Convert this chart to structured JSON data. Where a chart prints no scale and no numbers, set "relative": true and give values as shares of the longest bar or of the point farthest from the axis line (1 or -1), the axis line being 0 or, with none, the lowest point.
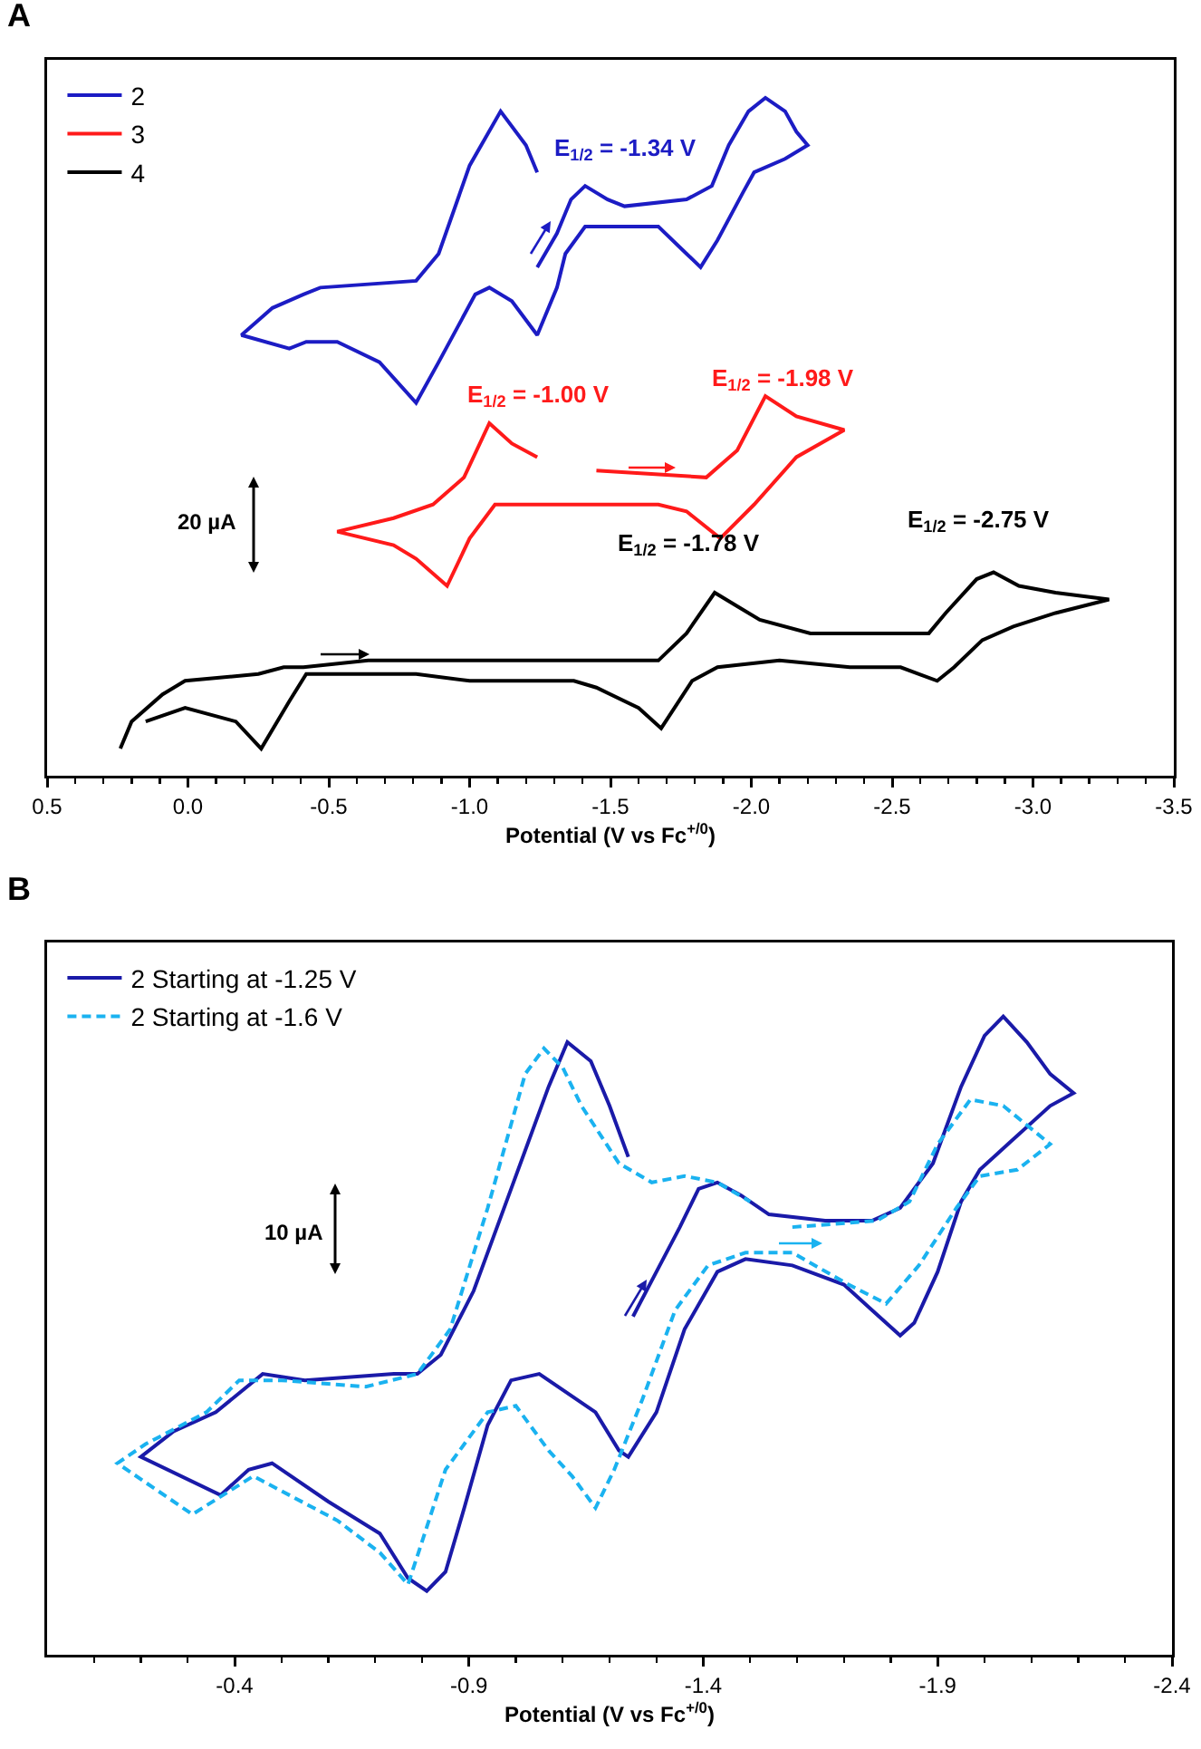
{
  "chart_data": [
    {
      "type": "line",
      "title": "A",
      "xlabel": "Potential (V vs Fc$^{+/0}$)",
      "relative": true,
      "xlim": [
        0.5,
        -3.5
      ],
      "xticks": [
        0.5,
        {
          "value": 0.4,
          "label": null
        },
        {
          "value": 0.3,
          "label": null
        },
        {
          "value": 0.2,
          "label": null
        },
        {
          "value": 0.1,
          "label": null
        },
        {
          "value": 0,
          "label": "0.0"
        },
        {
          "value": -0.1,
          "label": null
        },
        {
          "value": -0.2,
          "label": null
        },
        {
          "value": -0.3,
          "label": null
        },
        {
          "value": -0.4,
          "label": null
        },
        -0.5,
        {
          "value": -0.6,
          "label": null
        },
        {
          "value": -0.7,
          "label": null
        },
        {
          "value": -0.8,
          "label": null
        },
        {
          "value": -0.9,
          "label": null
        },
        {
          "value": -1,
          "label": "-1.0"
        },
        {
          "value": -1.1,
          "label": null
        },
        {
          "value": -1.2,
          "label": null
        },
        {
          "value": -1.3,
          "label": null
        },
        {
          "value": -1.4,
          "label": null
        },
        -1.5,
        {
          "value": -1.6,
          "label": null
        },
        {
          "value": -1.7,
          "label": null
        },
        {
          "value": -1.8,
          "label": null
        },
        {
          "value": -1.9,
          "label": null
        },
        {
          "value": -2,
          "label": "-2.0"
        },
        {
          "value": -2.1,
          "label": null
        },
        {
          "value": -2.2,
          "label": null
        },
        {
          "value": -2.3,
          "label": null
        },
        {
          "value": -2.4,
          "label": null
        },
        -2.5,
        {
          "value": -2.6,
          "label": null
        },
        {
          "value": -2.7,
          "label": null
        },
        {
          "value": -2.8,
          "label": null
        },
        {
          "value": -2.9,
          "label": null
        },
        {
          "value": -3,
          "label": "-3.0"
        },
        {
          "value": -3.1,
          "label": null
        },
        {
          "value": -3.2,
          "label": null
        },
        {
          "value": -3.3,
          "label": null
        },
        {
          "value": -3.4,
          "label": null
        },
        -3.5
      ],
      "legend": "top left",
      "marker": "none",
      "line_style": "solid",
      "annotations": [
        "E$_{1/2}$ = -1.34 V",
        "E$_{1/2}$ = -1.00 V",
        "E$_{1/2}$ = -1.98 V",
        "E$_{1/2}$ = -1.78 V",
        "E$_{1/2}$ = -2.75 V",
        "20 µA"
      ],
      "series": [
        {
          "name": "2",
          "color": "#1c1cc4",
          "x": [
            -1.24,
            -1.31,
            -1.36,
            -1.41,
            -1.49,
            -1.55,
            -1.77,
            -1.86,
            -1.92,
            -1.99,
            -2.05,
            -2.12,
            -2.16,
            -2.2,
            -2.12,
            -2.01,
            -1.97,
            -1.88,
            -1.82,
            -1.77,
            -1.67,
            -1.54,
            -1.41,
            -1.34,
            -1.31,
            -1.24,
            -1.15,
            -1.07,
            -1.02,
            -0.89,
            -0.81,
            -0.68,
            -0.53,
            -0.42,
            -0.36,
            -0.19,
            -0.3,
            -0.41,
            -0.47,
            -0.81,
            -0.89,
            -1,
            -1.11,
            -1.2,
            -1.24
          ],
          "values": [
            0.75,
            0.8,
            0.85,
            0.87,
            0.85,
            0.84,
            0.85,
            0.87,
            0.93,
            0.98,
            1,
            0.98,
            0.95,
            0.93,
            0.91,
            0.89,
            0.86,
            0.79,
            0.75,
            0.77,
            0.81,
            0.81,
            0.81,
            0.77,
            0.72,
            0.65,
            0.7,
            0.72,
            0.71,
            0.61,
            0.55,
            0.61,
            0.64,
            0.64,
            0.63,
            0.65,
            0.69,
            0.71,
            0.72,
            0.73,
            0.77,
            0.9,
            0.98,
            0.93,
            0.89
          ]
        },
        {
          "name": "3",
          "color": "#ff1a1a",
          "x": [
            -1.45,
            -1.84,
            -1.95,
            -2.05,
            -2.16,
            -2.33,
            -2.16,
            -2.01,
            -1.89,
            -1.77,
            -1.67,
            -1.45,
            -1.2,
            -1.09,
            -1,
            -0.92,
            -0.81,
            -0.73,
            -0.53,
            -0.73,
            -0.87,
            -0.98,
            -1.07,
            -1.15,
            -1.24
          ],
          "values": [
            0.45,
            0.44,
            0.48,
            0.56,
            0.53,
            0.51,
            0.47,
            0.4,
            0.35,
            0.39,
            0.4,
            0.4,
            0.4,
            0.4,
            0.35,
            0.28,
            0.32,
            0.34,
            0.36,
            0.38,
            0.4,
            0.44,
            0.52,
            0.49,
            0.47
          ]
        },
        {
          "name": "4",
          "color": "#000000",
          "x": [
            0.24,
            0.2,
            0.09,
            0.01,
            -0.25,
            -0.34,
            -0.41,
            -0.64,
            -1.02,
            -1.45,
            -1.67,
            -1.77,
            -1.87,
            -1.95,
            -2.03,
            -2.21,
            -2.63,
            -2.69,
            -2.8,
            -2.86,
            -2.95,
            -3.08,
            -3.27,
            -3.08,
            -2.93,
            -2.82,
            -2.72,
            -2.66,
            -2.53,
            -2.35,
            -2.1,
            -1.88,
            -1.79,
            -1.68,
            -1.6,
            -1.45,
            -1.37,
            -1,
            -0.81,
            -0.42,
            -0.36,
            -0.26,
            -0.17,
            0.01,
            0.15
          ],
          "values": [
            0.04,
            0.08,
            0.12,
            0.14,
            0.15,
            0.16,
            0.16,
            0.17,
            0.17,
            0.17,
            0.17,
            0.21,
            0.27,
            0.25,
            0.23,
            0.21,
            0.21,
            0.24,
            0.29,
            0.3,
            0.28,
            0.27,
            0.26,
            0.24,
            0.22,
            0.2,
            0.16,
            0.14,
            0.16,
            0.16,
            0.17,
            0.16,
            0.14,
            0.07,
            0.1,
            0.13,
            0.14,
            0.14,
            0.15,
            0.15,
            0.11,
            0.04,
            0.08,
            0.1,
            0.08
          ]
        }
      ]
    },
    {
      "type": "line",
      "title": "B",
      "xlabel": "Potential (V vs Fc$^{+/0}$)",
      "relative": true,
      "xlim": [
        0,
        -2.4
      ],
      "xticks": [
        {
          "value": -0.1,
          "label": null
        },
        {
          "value": -0.2,
          "label": null
        },
        {
          "value": -0.3,
          "label": null
        },
        -0.4,
        {
          "value": -0.5,
          "label": null
        },
        {
          "value": -0.6,
          "label": null
        },
        {
          "value": -0.7,
          "label": null
        },
        {
          "value": -0.8,
          "label": null
        },
        -0.9,
        {
          "value": -1,
          "label": null
        },
        {
          "value": -1.1,
          "label": null
        },
        {
          "value": -1.2,
          "label": null
        },
        {
          "value": -1.3,
          "label": null
        },
        -1.4,
        {
          "value": -1.5,
          "label": null
        },
        {
          "value": -1.6,
          "label": null
        },
        {
          "value": -1.7,
          "label": null
        },
        {
          "value": -1.8,
          "label": null
        },
        -1.9,
        {
          "value": -2,
          "label": null
        },
        {
          "value": -2.1,
          "label": null
        },
        {
          "value": -2.2,
          "label": null
        },
        {
          "value": -2.3,
          "label": null
        },
        -2.4
      ],
      "legend": "top left",
      "marker": "none",
      "annotations": [
        "10 µA"
      ],
      "series": [
        {
          "name": "2 Starting at -1.25 V",
          "color": "#1a1aa8",
          "line_style": "solid",
          "x": [
            -1.25,
            -1.3,
            -1.35,
            -1.39,
            -1.43,
            -1.48,
            -1.54,
            -1.66,
            -1.76,
            -1.82,
            -1.89,
            -1.95,
            -2,
            -2.04,
            -2.09,
            -2.14,
            -2.19,
            -2.14,
            -2.05,
            -1.99,
            -1.95,
            -1.9,
            -1.85,
            -1.82,
            -1.76,
            -1.7,
            -1.59,
            -1.49,
            -1.43,
            -1.36,
            -1.3,
            -1.24,
            -1.22,
            -1.17,
            -1.05,
            -0.99,
            -0.94,
            -0.89,
            -0.85,
            -0.81,
            -0.77,
            -0.71,
            -0.6,
            -0.48,
            -0.43,
            -0.37,
            -0.2,
            -0.27,
            -0.36,
            -0.46,
            -0.55,
            -0.74,
            -0.79,
            -0.84,
            -0.91,
            -0.99,
            -1.07,
            -1.11,
            -1.16,
            -1.2,
            -1.24
          ],
          "values": [
            0.53,
            0.6,
            0.67,
            0.73,
            0.74,
            0.72,
            0.69,
            0.68,
            0.68,
            0.7,
            0.77,
            0.89,
            0.97,
            1,
            0.96,
            0.91,
            0.88,
            0.86,
            0.8,
            0.76,
            0.71,
            0.6,
            0.52,
            0.5,
            0.54,
            0.58,
            0.61,
            0.62,
            0.6,
            0.51,
            0.38,
            0.31,
            0.32,
            0.38,
            0.44,
            0.43,
            0.36,
            0.23,
            0.13,
            0.1,
            0.12,
            0.19,
            0.24,
            0.3,
            0.29,
            0.25,
            0.31,
            0.35,
            0.38,
            0.44,
            0.43,
            0.44,
            0.44,
            0.47,
            0.57,
            0.73,
            0.89,
            0.96,
            0.93,
            0.86,
            0.78
          ]
        },
        {
          "name": "2 Starting at -1.6 V",
          "color": "#1ab2f0",
          "line_style": "dashed",
          "x": [
            -1.59,
            -1.77,
            -1.84,
            -1.9,
            -1.97,
            -2.04,
            -2.14,
            -2.07,
            -1.99,
            -1.94,
            -1.86,
            -1.79,
            -1.71,
            -1.59,
            -1.49,
            -1.41,
            -1.34,
            -1.27,
            -1.21,
            -1.17,
            -1.12,
            -1.07,
            -1,
            -0.94,
            -0.85,
            -0.77,
            -0.71,
            -0.62,
            -0.44,
            -0.31,
            -0.15,
            -0.21,
            -0.34,
            -0.41,
            -0.5,
            -0.68,
            -0.79,
            -0.86,
            -0.94,
            -1.02,
            -1.06,
            -1.1,
            -1.14,
            -1.22,
            -1.29,
            -1.36,
            -1.43,
            -1.5
          ],
          "values": [
            0.67,
            0.68,
            0.71,
            0.8,
            0.87,
            0.86,
            0.8,
            0.76,
            0.75,
            0.7,
            0.61,
            0.55,
            0.58,
            0.63,
            0.63,
            0.61,
            0.54,
            0.4,
            0.29,
            0.23,
            0.28,
            0.32,
            0.39,
            0.38,
            0.29,
            0.11,
            0.16,
            0.21,
            0.28,
            0.22,
            0.3,
            0.33,
            0.38,
            0.43,
            0.43,
            0.42,
            0.44,
            0.51,
            0.7,
            0.91,
            0.95,
            0.92,
            0.86,
            0.77,
            0.74,
            0.75,
            0.74,
            0.71
          ]
        }
      ]
    }
  ]
}
